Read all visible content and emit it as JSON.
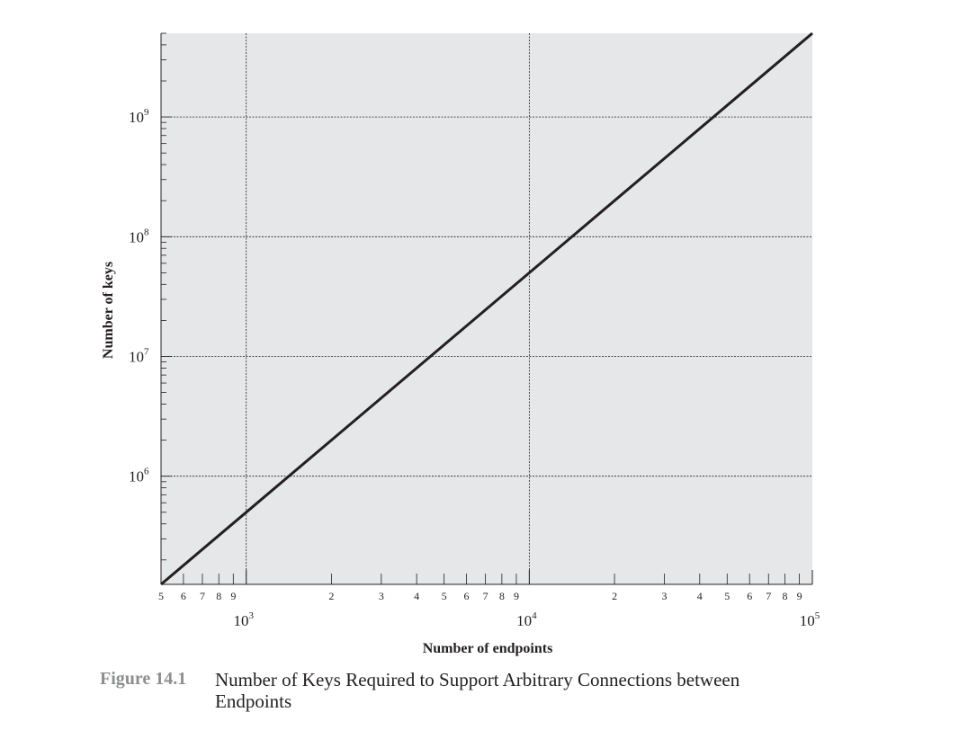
{
  "chart_data": {
    "type": "line",
    "x_scale": "log",
    "y_scale": "log",
    "xlim": [
      500,
      100000
    ],
    "ylim": [
      125000,
      5000000000
    ],
    "x_decades": [
      {
        "base": "10",
        "exp": "3",
        "value": 1000
      },
      {
        "base": "10",
        "exp": "4",
        "value": 10000
      },
      {
        "base": "10",
        "exp": "5",
        "value": 100000
      }
    ],
    "y_decades": [
      {
        "base": "10",
        "exp": "6",
        "value": 1000000
      },
      {
        "base": "10",
        "exp": "7",
        "value": 10000000
      },
      {
        "base": "10",
        "exp": "8",
        "value": 100000000
      },
      {
        "base": "10",
        "exp": "9",
        "value": 1000000000
      }
    ],
    "x_minor_ticks": [
      {
        "label": "5",
        "value": 500
      },
      {
        "label": "6",
        "value": 600
      },
      {
        "label": "7",
        "value": 700
      },
      {
        "label": "8",
        "value": 800
      },
      {
        "label": "9",
        "value": 900
      },
      {
        "label": "2",
        "value": 2000
      },
      {
        "label": "3",
        "value": 3000
      },
      {
        "label": "4",
        "value": 4000
      },
      {
        "label": "5",
        "value": 5000
      },
      {
        "label": "6",
        "value": 6000
      },
      {
        "label": "7",
        "value": 7000
      },
      {
        "label": "8",
        "value": 8000
      },
      {
        "label": "9",
        "value": 9000
      },
      {
        "label": "2",
        "value": 20000
      },
      {
        "label": "3",
        "value": 30000
      },
      {
        "label": "4",
        "value": 40000
      },
      {
        "label": "5",
        "value": 50000
      },
      {
        "label": "6",
        "value": 60000
      },
      {
        "label": "7",
        "value": 70000
      },
      {
        "label": "8",
        "value": 80000
      },
      {
        "label": "9",
        "value": 90000
      }
    ],
    "series": [
      {
        "x": [
          500,
          1000,
          2000,
          5000,
          10000,
          20000,
          50000,
          100000
        ],
        "y": [
          125000,
          500000,
          2000000,
          12500000,
          50000000,
          200000000,
          1250000000,
          5000000000
        ]
      }
    ],
    "xlabel": "Number of endpoints",
    "ylabel": "Number of keys",
    "grid": true,
    "colors": {
      "plot_background": "#e6e7e8",
      "line": "#231f20",
      "grid": "#231f20"
    }
  },
  "caption": {
    "label": "Figure 14.1",
    "text": "Number of Keys Required to Support Arbitrary Connections between Endpoints"
  }
}
